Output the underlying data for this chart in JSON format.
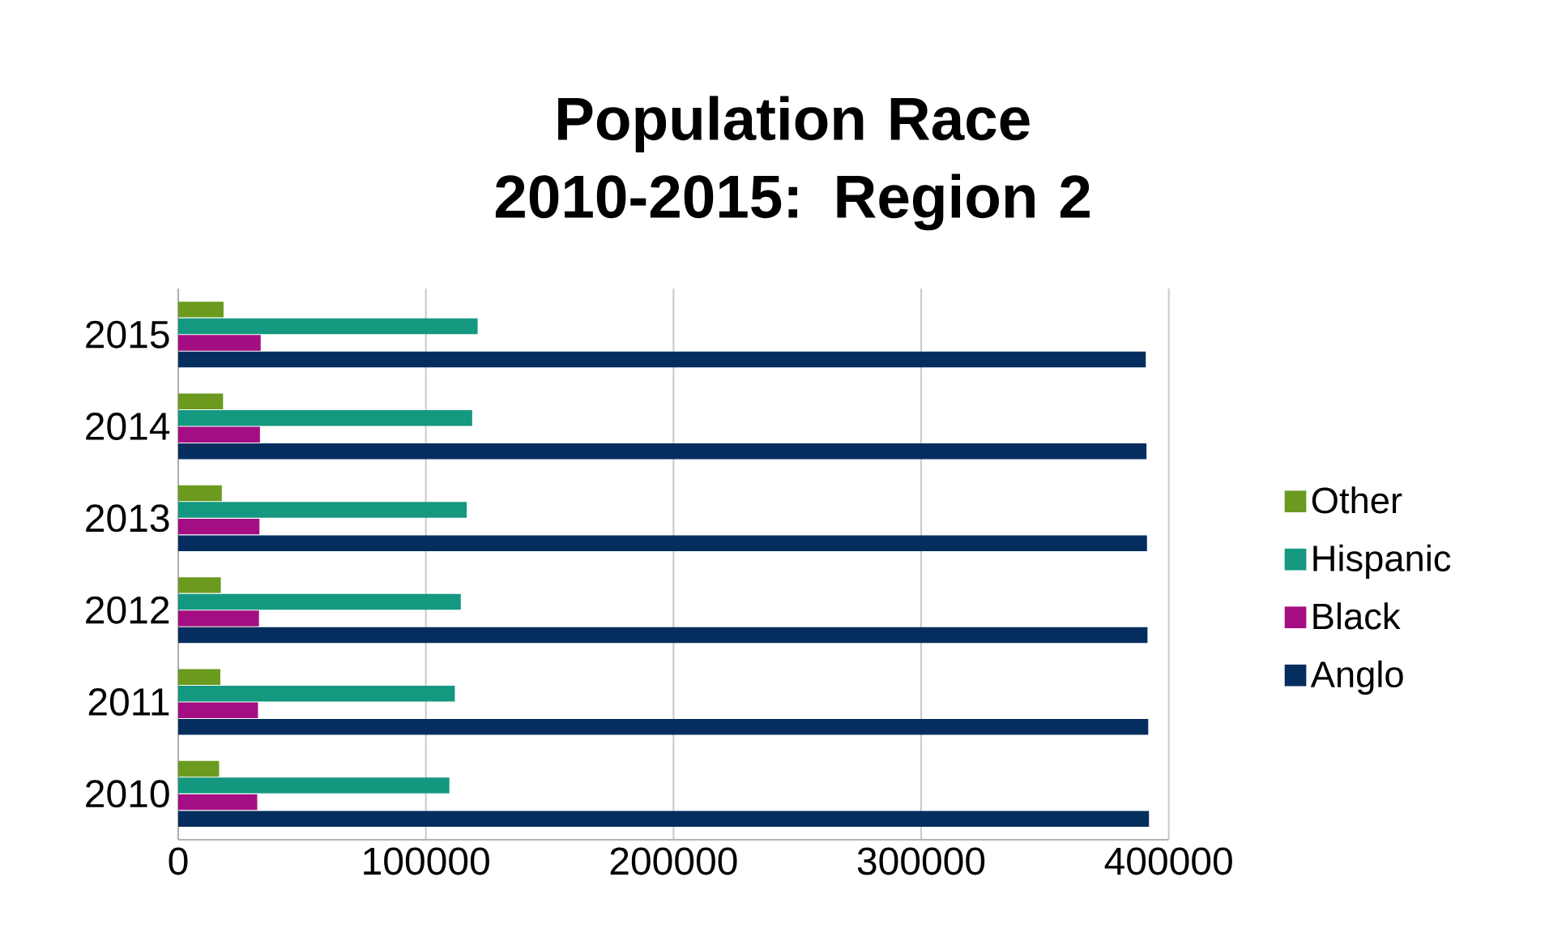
{
  "chart_data": {
    "type": "bar",
    "orientation": "horizontal",
    "title": "Population Race 2010-2015: Region 2",
    "categories": [
      "2015",
      "2014",
      "2013",
      "2012",
      "2011",
      "2010"
    ],
    "series": [
      {
        "name": "Other",
        "color": "#6b9a1f",
        "values": [
          18300,
          18100,
          17600,
          17200,
          17000,
          16500
        ]
      },
      {
        "name": "Hispanic",
        "color": "#149880",
        "values": [
          120900,
          118700,
          116500,
          114100,
          111700,
          109500
        ]
      },
      {
        "name": "Black",
        "color": "#a50e82",
        "values": [
          33300,
          33000,
          32800,
          32600,
          32200,
          31900
        ]
      },
      {
        "name": "Anglo",
        "color": "#052e5e",
        "values": [
          390700,
          391000,
          391200,
          391400,
          391700,
          392000
        ]
      }
    ],
    "xlim": [
      0,
      400000
    ],
    "xticks": [
      0,
      100000,
      200000,
      300000,
      400000
    ],
    "grid": "x",
    "legend": "right"
  }
}
